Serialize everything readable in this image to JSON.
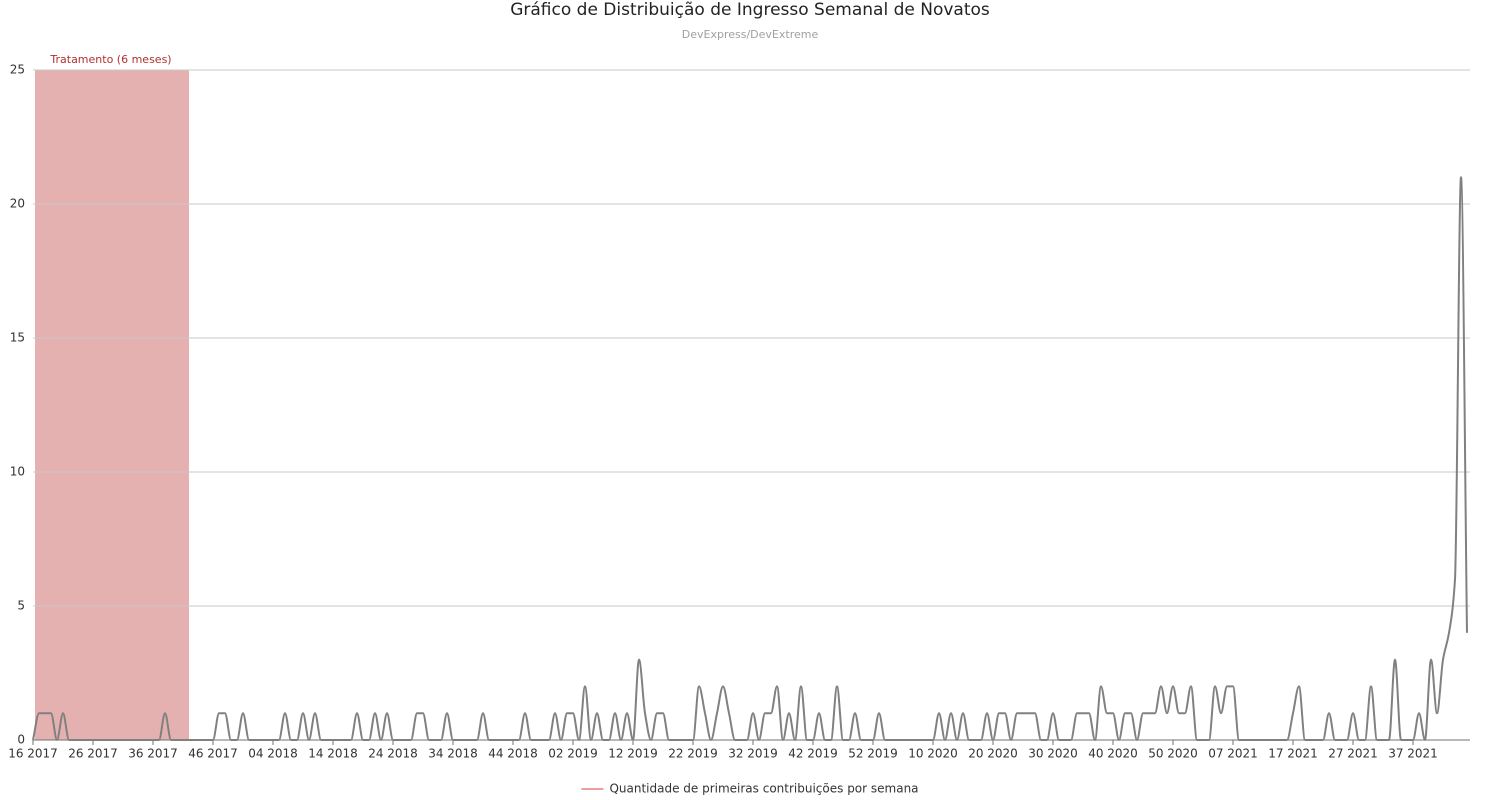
{
  "chart_data": {
    "type": "line",
    "title": "Gráfico de Distribuição de Ingresso Semanal de Novatos",
    "subtitle": "DevExpress/DevExtreme",
    "categories": [
      "16 2017",
      null,
      null,
      null,
      null,
      null,
      null,
      null,
      null,
      null,
      "26 2017",
      null,
      null,
      null,
      null,
      null,
      null,
      null,
      null,
      null,
      "36 2017",
      null,
      null,
      null,
      null,
      null,
      null,
      null,
      null,
      null,
      "46 2017",
      null,
      null,
      null,
      null,
      null,
      null,
      null,
      null,
      null,
      "04 2018",
      null,
      null,
      null,
      null,
      null,
      null,
      null,
      null,
      null,
      "14 2018",
      null,
      null,
      null,
      null,
      null,
      null,
      null,
      null,
      null,
      "24 2018",
      null,
      null,
      null,
      null,
      null,
      null,
      null,
      null,
      null,
      "34 2018",
      null,
      null,
      null,
      null,
      null,
      null,
      null,
      null,
      null,
      "44 2018",
      null,
      null,
      null,
      null,
      null,
      null,
      null,
      null,
      null,
      "02 2019",
      null,
      null,
      null,
      null,
      null,
      null,
      null,
      null,
      null,
      "12 2019",
      null,
      null,
      null,
      null,
      null,
      null,
      null,
      null,
      null,
      "22 2019",
      null,
      null,
      null,
      null,
      null,
      null,
      null,
      null,
      null,
      "32 2019",
      null,
      null,
      null,
      null,
      null,
      null,
      null,
      null,
      null,
      "42 2019",
      null,
      null,
      null,
      null,
      null,
      null,
      null,
      null,
      null,
      "52 2019",
      null,
      null,
      null,
      null,
      null,
      null,
      null,
      null,
      null,
      "10 2020",
      null,
      null,
      null,
      null,
      null,
      null,
      null,
      null,
      null,
      "20 2020",
      null,
      null,
      null,
      null,
      null,
      null,
      null,
      null,
      null,
      "30 2020",
      null,
      null,
      null,
      null,
      null,
      null,
      null,
      null,
      null,
      "40 2020",
      null,
      null,
      null,
      null,
      null,
      null,
      null,
      null,
      null,
      "50 2020",
      null,
      null,
      null,
      null,
      null,
      null,
      null,
      null,
      null,
      "07 2021",
      null,
      null,
      null,
      null,
      null,
      null,
      null,
      null,
      null,
      "17 2021",
      null,
      null,
      null,
      null,
      null,
      null,
      null,
      null,
      null,
      "27 2021",
      null,
      null,
      null,
      null,
      null,
      null,
      null,
      null,
      null,
      "37 2021",
      null,
      null,
      null,
      null,
      null,
      null,
      null,
      null,
      null
    ],
    "series": [
      {
        "name": "Quantidade de primeiras contribuições por semana",
        "color": "#808080",
        "legend_color": "#e8a0a0",
        "values": [
          0,
          1,
          1,
          1,
          0,
          1,
          0,
          0,
          0,
          0,
          0,
          0,
          0,
          0,
          0,
          0,
          0,
          0,
          0,
          0,
          0,
          0,
          1,
          0,
          0,
          0,
          0,
          0,
          0,
          0,
          0,
          1,
          1,
          0,
          0,
          1,
          0,
          0,
          0,
          0,
          0,
          0,
          1,
          0,
          0,
          1,
          0,
          1,
          0,
          0,
          0,
          0,
          0,
          0,
          1,
          0,
          0,
          1,
          0,
          1,
          0,
          0,
          0,
          0,
          1,
          1,
          0,
          0,
          0,
          1,
          0,
          0,
          0,
          0,
          0,
          1,
          0,
          0,
          0,
          0,
          0,
          0,
          1,
          0,
          0,
          0,
          0,
          1,
          0,
          1,
          1,
          0,
          2,
          0,
          1,
          0,
          0,
          1,
          0,
          1,
          0,
          3,
          1,
          0,
          1,
          1,
          0,
          0,
          0,
          0,
          0,
          2,
          1,
          0,
          1,
          2,
          1,
          0,
          0,
          0,
          1,
          0,
          1,
          1,
          2,
          0,
          1,
          0,
          2,
          0,
          0,
          1,
          0,
          0,
          2,
          0,
          0,
          1,
          0,
          0,
          0,
          1,
          0,
          0,
          0,
          0,
          0,
          0,
          0,
          0,
          0,
          1,
          0,
          1,
          0,
          1,
          0,
          0,
          0,
          1,
          0,
          1,
          1,
          0,
          1,
          1,
          1,
          1,
          0,
          0,
          1,
          0,
          0,
          0,
          1,
          1,
          1,
          0,
          2,
          1,
          1,
          0,
          1,
          1,
          0,
          1,
          1,
          1,
          2,
          1,
          2,
          1,
          1,
          2,
          0,
          0,
          0,
          2,
          1,
          2,
          2,
          0,
          0,
          0,
          0,
          0,
          0,
          0,
          0,
          0,
          1,
          2,
          0,
          0,
          0,
          0,
          1,
          0,
          0,
          0,
          1,
          0,
          0,
          2,
          0,
          0,
          0,
          3,
          0,
          0,
          0,
          1,
          0,
          3,
          1,
          3,
          4,
          6,
          21,
          4
        ]
      }
    ],
    "bands": [
      {
        "label": "Tratamento (6 meses)",
        "from": 0,
        "to": 26,
        "color": "#e5b0b0",
        "label_color": "#b03030"
      }
    ],
    "ylim": [
      0,
      25
    ],
    "yticks": [
      0,
      5,
      10,
      15,
      20,
      25
    ],
    "grid": true,
    "legend": "bottom"
  }
}
